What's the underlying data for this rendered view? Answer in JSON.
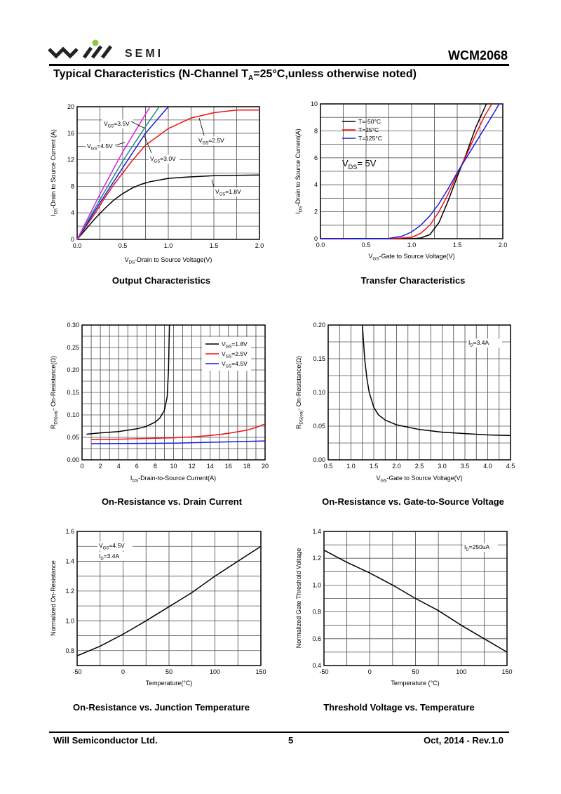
{
  "header": {
    "brand_logo_text": "will",
    "brand_semi": "SEMI",
    "part_number": "WCM2068",
    "title_pre": "Typical Characteristics  (N-Channel  T",
    "title_sub": "A",
    "title_post": "=25°C,unless otherwise noted)",
    "logo_dot_color": "#8cc63f"
  },
  "captions": [
    "Output Characteristics",
    "Transfer Characteristics",
    "On-Resistance vs. Drain Current",
    "On-Resistance vs. Gate-to-Source Voltage",
    "On-Resistance vs. Junction Temperature",
    "Threshold Voltage vs. Temperature"
  ],
  "footer": {
    "company": "Will Semiconductor Ltd.",
    "page": "5",
    "date_rev": "Oct, 2014 - Rev.1.0"
  },
  "chart_data": [
    {
      "type": "line",
      "title": "Output Characteristics",
      "xlabel": {
        "pre": "V",
        "sub": "DS",
        "post": "-Drain to Source Voltage(V)"
      },
      "ylabel": {
        "pre": "I",
        "sub": "DS",
        "post": "-Drain to Source Current (A)"
      },
      "xlim": [
        0,
        2
      ],
      "ylim": [
        0,
        20
      ],
      "xticks": [
        "0.0",
        "0.5",
        "1.0",
        "1.5",
        "2.0"
      ],
      "xtick_values": [
        0,
        0.5,
        1,
        1.5,
        2
      ],
      "yticks": [
        "0",
        "4",
        "8",
        "12",
        "16",
        "20"
      ],
      "ytick_values": [
        0,
        4,
        8,
        12,
        16,
        20
      ],
      "grid": true,
      "series": [
        {
          "name": {
            "pre": "V",
            "sub": "GS",
            "post": "=1.8V"
          },
          "color": "#000000",
          "x": [
            0,
            0.1,
            0.2,
            0.3,
            0.4,
            0.5,
            0.6,
            0.7,
            0.8,
            1.0,
            1.2,
            1.5,
            2.0
          ],
          "y": [
            0,
            1.6,
            3.2,
            4.6,
            5.9,
            6.9,
            7.7,
            8.3,
            8.7,
            9.2,
            9.4,
            9.6,
            9.7
          ]
        },
        {
          "name": {
            "pre": "V",
            "sub": "GS",
            "post": "=2.5V"
          },
          "color": "#ee1111",
          "x": [
            0,
            0.1,
            0.2,
            0.3,
            0.4,
            0.5,
            0.6,
            0.75,
            1.0,
            1.25,
            1.5,
            1.75,
            2.0
          ],
          "y": [
            0,
            2,
            4,
            6.2,
            8.2,
            10,
            11.8,
            14.2,
            16.7,
            18.3,
            19.1,
            19.5,
            19.5
          ]
        },
        {
          "name": {
            "pre": "V",
            "sub": "GS",
            "post": "=3.0V"
          },
          "color": "#1a1ae0",
          "x": [
            0,
            0.1,
            0.25,
            0.5,
            0.75,
            1.0
          ],
          "y": [
            0,
            2.2,
            5.5,
            10.8,
            16,
            20
          ]
        },
        {
          "name": {
            "pre": "V",
            "sub": "GS",
            "post": "=3.5V"
          },
          "color": "#1a8c8c",
          "x": [
            0,
            0.25,
            0.5,
            0.75,
            0.9
          ],
          "y": [
            0,
            6,
            11.8,
            17,
            20
          ]
        },
        {
          "name": {
            "pre": "V",
            "sub": "GS",
            "post": "=4.5V"
          },
          "color": "#e020e0",
          "x": [
            0,
            0.25,
            0.5,
            0.8
          ],
          "y": [
            0,
            6.8,
            13.2,
            20
          ]
        }
      ],
      "annotations": [
        {
          "pre": "V",
          "sub": "GS",
          "post": "=3.5V"
        },
        {
          "pre": "V",
          "sub": "GS",
          "post": "=4.5V"
        },
        {
          "pre": "V",
          "sub": "GS",
          "post": "=3.0V"
        },
        {
          "pre": "V",
          "sub": "GS",
          "post": "=2.5V"
        },
        {
          "pre": "V",
          "sub": "GS",
          "post": "=1.8V"
        }
      ]
    },
    {
      "type": "line",
      "title": "Transfer Characteristics",
      "xlabel": {
        "pre": "V",
        "sub": "GS",
        "post": "-Gate to Source Voltage(V)"
      },
      "ylabel": {
        "pre": "I",
        "sub": "DS",
        "post": "-Drain to Source Current(A)"
      },
      "xlim": [
        0,
        2
      ],
      "ylim": [
        0,
        10
      ],
      "xticks": [
        "0.0",
        "0.5",
        "1.0",
        "1.5",
        "2.0"
      ],
      "xtick_values": [
        0,
        0.5,
        1,
        1.5,
        2
      ],
      "yticks": [
        "0",
        "2",
        "4",
        "6",
        "8",
        "10"
      ],
      "ytick_values": [
        0,
        2,
        4,
        6,
        8,
        10
      ],
      "grid": true,
      "legend": "top-left",
      "series": [
        {
          "name": {
            "pre": "T=-50",
            "sub": "",
            "post": "°C"
          },
          "color": "#000000",
          "x": [
            0,
            1.0,
            1.1,
            1.2,
            1.3,
            1.4,
            1.5,
            1.6,
            1.7,
            1.82
          ],
          "y": [
            0,
            0,
            0.05,
            0.3,
            1.2,
            2.8,
            4.6,
            6.3,
            8.2,
            10
          ]
        },
        {
          "name": {
            "pre": "T=25",
            "sub": "",
            "post": "°C"
          },
          "color": "#ee1111",
          "x": [
            0,
            0.8,
            1.0,
            1.1,
            1.2,
            1.3,
            1.4,
            1.5,
            1.6,
            1.7,
            1.8,
            1.88
          ],
          "y": [
            0,
            0.02,
            0.1,
            0.4,
            1,
            2,
            3.3,
            4.8,
            6.2,
            7.7,
            9.1,
            10
          ]
        },
        {
          "name": {
            "pre": "T=125",
            "sub": "",
            "post": "°C"
          },
          "color": "#1a1ae0",
          "x": [
            0,
            0.75,
            0.9,
            1.0,
            1.1,
            1.2,
            1.3,
            1.4,
            1.5,
            1.6,
            1.7,
            1.8,
            1.9,
            1.96
          ],
          "y": [
            0,
            0.02,
            0.2,
            0.5,
            1,
            1.7,
            2.6,
            3.7,
            4.9,
            6.0,
            7.1,
            8.2,
            9.3,
            10
          ]
        }
      ],
      "annotations": [
        {
          "pre": "V",
          "sub": "DS",
          "post": "= 5V"
        }
      ]
    },
    {
      "type": "line",
      "title": "On-Resistance vs. Drain Current",
      "xlabel": {
        "pre": "I",
        "sub": "DS",
        "post": "-Drain-to-Source Current(A)"
      },
      "ylabel": {
        "pre": "R",
        "sub": "DS(on)",
        "post": "- On-Resistance(Ω)"
      },
      "xlim": [
        0,
        20
      ],
      "ylim": [
        0,
        0.3
      ],
      "xticks": [
        "0",
        "2",
        "4",
        "6",
        "8",
        "10",
        "12",
        "14",
        "16",
        "18",
        "20"
      ],
      "xtick_values": [
        0,
        2,
        4,
        6,
        8,
        10,
        12,
        14,
        16,
        18,
        20
      ],
      "yticks": [
        "0.00",
        "0.05",
        "0.10",
        "0.15",
        "0.20",
        "0.25",
        "0.30"
      ],
      "ytick_values": [
        0,
        0.05,
        0.1,
        0.15,
        0.2,
        0.25,
        0.3
      ],
      "grid": true,
      "legend": "top-right",
      "series": [
        {
          "name": {
            "pre": "V",
            "sub": "GS",
            "post": "=1.8V"
          },
          "color": "#000000",
          "x": [
            0.5,
            2,
            4,
            6,
            7,
            8,
            8.5,
            9,
            9.3,
            9.45,
            9.55
          ],
          "y": [
            0.057,
            0.06,
            0.063,
            0.069,
            0.074,
            0.084,
            0.093,
            0.11,
            0.14,
            0.2,
            0.3
          ]
        },
        {
          "name": {
            "pre": "V",
            "sub": "GS",
            "post": "=2.5V"
          },
          "color": "#ee1111",
          "x": [
            1,
            4,
            8,
            10,
            12,
            14,
            16,
            18,
            19,
            20
          ],
          "y": [
            0.045,
            0.046,
            0.048,
            0.049,
            0.051,
            0.054,
            0.059,
            0.066,
            0.072,
            0.08
          ]
        },
        {
          "name": {
            "pre": "V",
            "sub": "GS",
            "post": "=4.5V"
          },
          "color": "#1a1ae0",
          "x": [
            1,
            6,
            10,
            14,
            20
          ],
          "y": [
            0.036,
            0.0365,
            0.037,
            0.039,
            0.042
          ]
        }
      ],
      "annotations": []
    },
    {
      "type": "line",
      "title": "On-Resistance vs. Gate-to-Source Voltage",
      "xlabel": {
        "pre": "V",
        "sub": "GS",
        "post": "-Gate to Source Voltage(V)"
      },
      "ylabel": {
        "pre": "R",
        "sub": "DS(on)",
        "post": "- On-Resistance(Ω)"
      },
      "xlim": [
        0.5,
        4.5
      ],
      "ylim": [
        0,
        0.2
      ],
      "xticks": [
        "0.5",
        "1.0",
        "1.5",
        "2.0",
        "2.5",
        "3.0",
        "3.5",
        "4.0",
        "4.5"
      ],
      "xtick_values": [
        0.5,
        1,
        1.5,
        2,
        2.5,
        3,
        3.5,
        4,
        4.5
      ],
      "yticks": [
        "0.00",
        "0.05",
        "0.10",
        "0.15",
        "0.20"
      ],
      "ytick_values": [
        0,
        0.05,
        0.1,
        0.15,
        0.2
      ],
      "grid": true,
      "series": [
        {
          "name": {
            "pre": "",
            "sub": "",
            "post": ""
          },
          "color": "#000000",
          "x": [
            1.25,
            1.3,
            1.35,
            1.4,
            1.5,
            1.6,
            1.75,
            2,
            2.5,
            3,
            3.5,
            4,
            4.5
          ],
          "y": [
            0.2,
            0.15,
            0.12,
            0.1,
            0.078,
            0.067,
            0.059,
            0.052,
            0.045,
            0.041,
            0.039,
            0.037,
            0.036
          ]
        }
      ],
      "annotations": [
        {
          "pre": "I",
          "sub": "D",
          "post": "=3.4A"
        }
      ]
    },
    {
      "type": "line",
      "title": "On-Resistance vs. Junction Temperature",
      "xlabel": {
        "pre": "Temperature(",
        "sub": "",
        "post": "°C)"
      },
      "ylabel": {
        "pre": "Normalized On-Resistance",
        "sub": "",
        "post": ""
      },
      "xlim": [
        -50,
        150
      ],
      "ylim": [
        0.7,
        1.6
      ],
      "xticks": [
        "-50",
        "0",
        "50",
        "100",
        "150"
      ],
      "xtick_values": [
        -50,
        0,
        50,
        100,
        150
      ],
      "yticks": [
        "0.8",
        "1.0",
        "1.2",
        "1.4",
        "1.6"
      ],
      "ytick_values": [
        0.8,
        1.0,
        1.2,
        1.4,
        1.6
      ],
      "grid": true,
      "series": [
        {
          "name": {
            "pre": "",
            "sub": "",
            "post": ""
          },
          "color": "#000000",
          "x": [
            -50,
            -25,
            0,
            25,
            50,
            75,
            100,
            125,
            150
          ],
          "y": [
            0.765,
            0.83,
            0.91,
            1.0,
            1.095,
            1.19,
            1.3,
            1.4,
            1.5
          ]
        }
      ],
      "annotations": [
        {
          "pre": "V",
          "sub": "GS",
          "post": "=4.5V"
        },
        {
          "pre": "I",
          "sub": "D",
          "post": "=3.4A"
        }
      ]
    },
    {
      "type": "line",
      "title": "Threshold Voltage vs. Temperature",
      "xlabel": {
        "pre": "Temperature (",
        "sub": "",
        "post": "°C)"
      },
      "ylabel": {
        "pre": "Normalized Gate Threshold Voltage",
        "sub": "",
        "post": ""
      },
      "xlim": [
        -50,
        150
      ],
      "ylim": [
        0.4,
        1.4
      ],
      "xticks": [
        "-50",
        "0",
        "50",
        "100",
        "150"
      ],
      "xtick_values": [
        -50,
        0,
        50,
        100,
        150
      ],
      "yticks": [
        "0.4",
        "0.6",
        "0.8",
        "1.0",
        "1.2",
        "1.4"
      ],
      "ytick_values": [
        0.4,
        0.6,
        0.8,
        1.0,
        1.2,
        1.4
      ],
      "grid": true,
      "series": [
        {
          "name": {
            "pre": "",
            "sub": "",
            "post": ""
          },
          "color": "#000000",
          "x": [
            -50,
            -25,
            0,
            25,
            50,
            75,
            100,
            125,
            150
          ],
          "y": [
            1.26,
            1.17,
            1.09,
            1.0,
            0.9,
            0.81,
            0.7,
            0.6,
            0.5
          ]
        }
      ],
      "annotations": [
        {
          "pre": "I",
          "sub": "D",
          "post": "=250uA"
        }
      ]
    }
  ]
}
